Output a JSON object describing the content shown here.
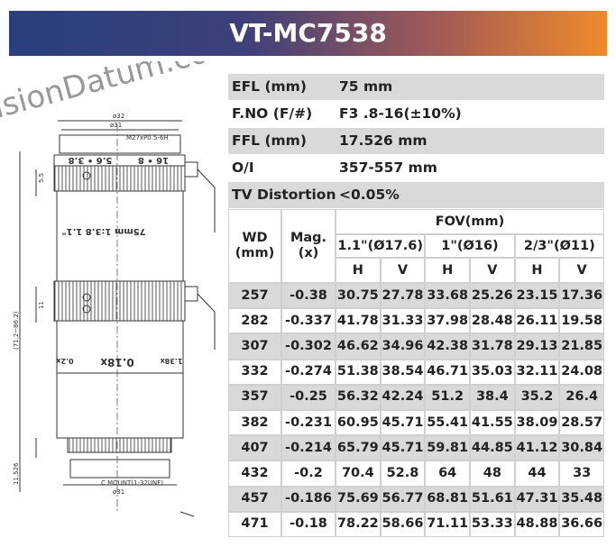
{
  "header": {
    "title": "VT-MC7538"
  },
  "watermark": "VisionDatum.com",
  "drawing": {
    "labels": [
      "ø32",
      "ø31",
      "M27xP0.5-6H",
      "16 • 8",
      "5.6 • 3.8",
      "75mm 1:3.8 1.1\"",
      "0.18x",
      "0.2x",
      "1.38x",
      "C MOUNT(1-32UNF)",
      "ø31",
      "5.5",
      "11",
      "(71.2~86.2)",
      "11.526"
    ]
  },
  "specs": [
    [
      "EFL (mm)",
      "75 mm"
    ],
    [
      "F.NO (F/#)",
      "F3 .8-16(±10%)"
    ],
    [
      "FFL (mm)",
      "17.526 mm"
    ],
    [
      "O/I",
      "357-557 mm"
    ],
    [
      "TV Distortion",
      "<0.05%"
    ]
  ],
  "fov_table": {
    "wd": "WD\n(mm)",
    "mag": "Mag.\n(x)",
    "fov": "FOV(mm)",
    "sensors": [
      "1.1\"(Ø17.6)",
      "1\"(Ø16)",
      "2/3\"(Ø11)"
    ],
    "hv": [
      "H",
      "V",
      "H",
      "V",
      "H",
      "V"
    ],
    "rows": [
      [
        "257",
        "-0.38",
        "30.75",
        "27.78",
        "33.68",
        "25.26",
        "23.15",
        "17.36"
      ],
      [
        "282",
        "-0.337",
        "41.78",
        "31.33",
        "37.98",
        "28.48",
        "26.11",
        "19.58"
      ],
      [
        "307",
        "-0.302",
        "46.62",
        "34.96",
        "42.38",
        "31.78",
        "29.13",
        "21.85"
      ],
      [
        "332",
        "-0.274",
        "51.38",
        "38.54",
        "46.71",
        "35.03",
        "32.11",
        "24.08"
      ],
      [
        "357",
        "-0.25",
        "56.32",
        "42.24",
        "51.2",
        "38.4",
        "35.2",
        "26.4"
      ],
      [
        "382",
        "-0.231",
        "60.95",
        "45.71",
        "55.41",
        "41.55",
        "38.09",
        "28.57"
      ],
      [
        "407",
        "-0.214",
        "65.79",
        "45.71",
        "59.81",
        "44.85",
        "41.12",
        "30.84"
      ],
      [
        "432",
        "-0.2",
        "70.4",
        "52.8",
        "64",
        "48",
        "44",
        "33"
      ],
      [
        "457",
        "-0.186",
        "75.69",
        "56.77",
        "68.81",
        "51.61",
        "47.31",
        "35.48"
      ],
      [
        "471",
        "-0.18",
        "78.22",
        "58.66",
        "71.11",
        "53.33",
        "48.88",
        "36.66"
      ]
    ]
  }
}
